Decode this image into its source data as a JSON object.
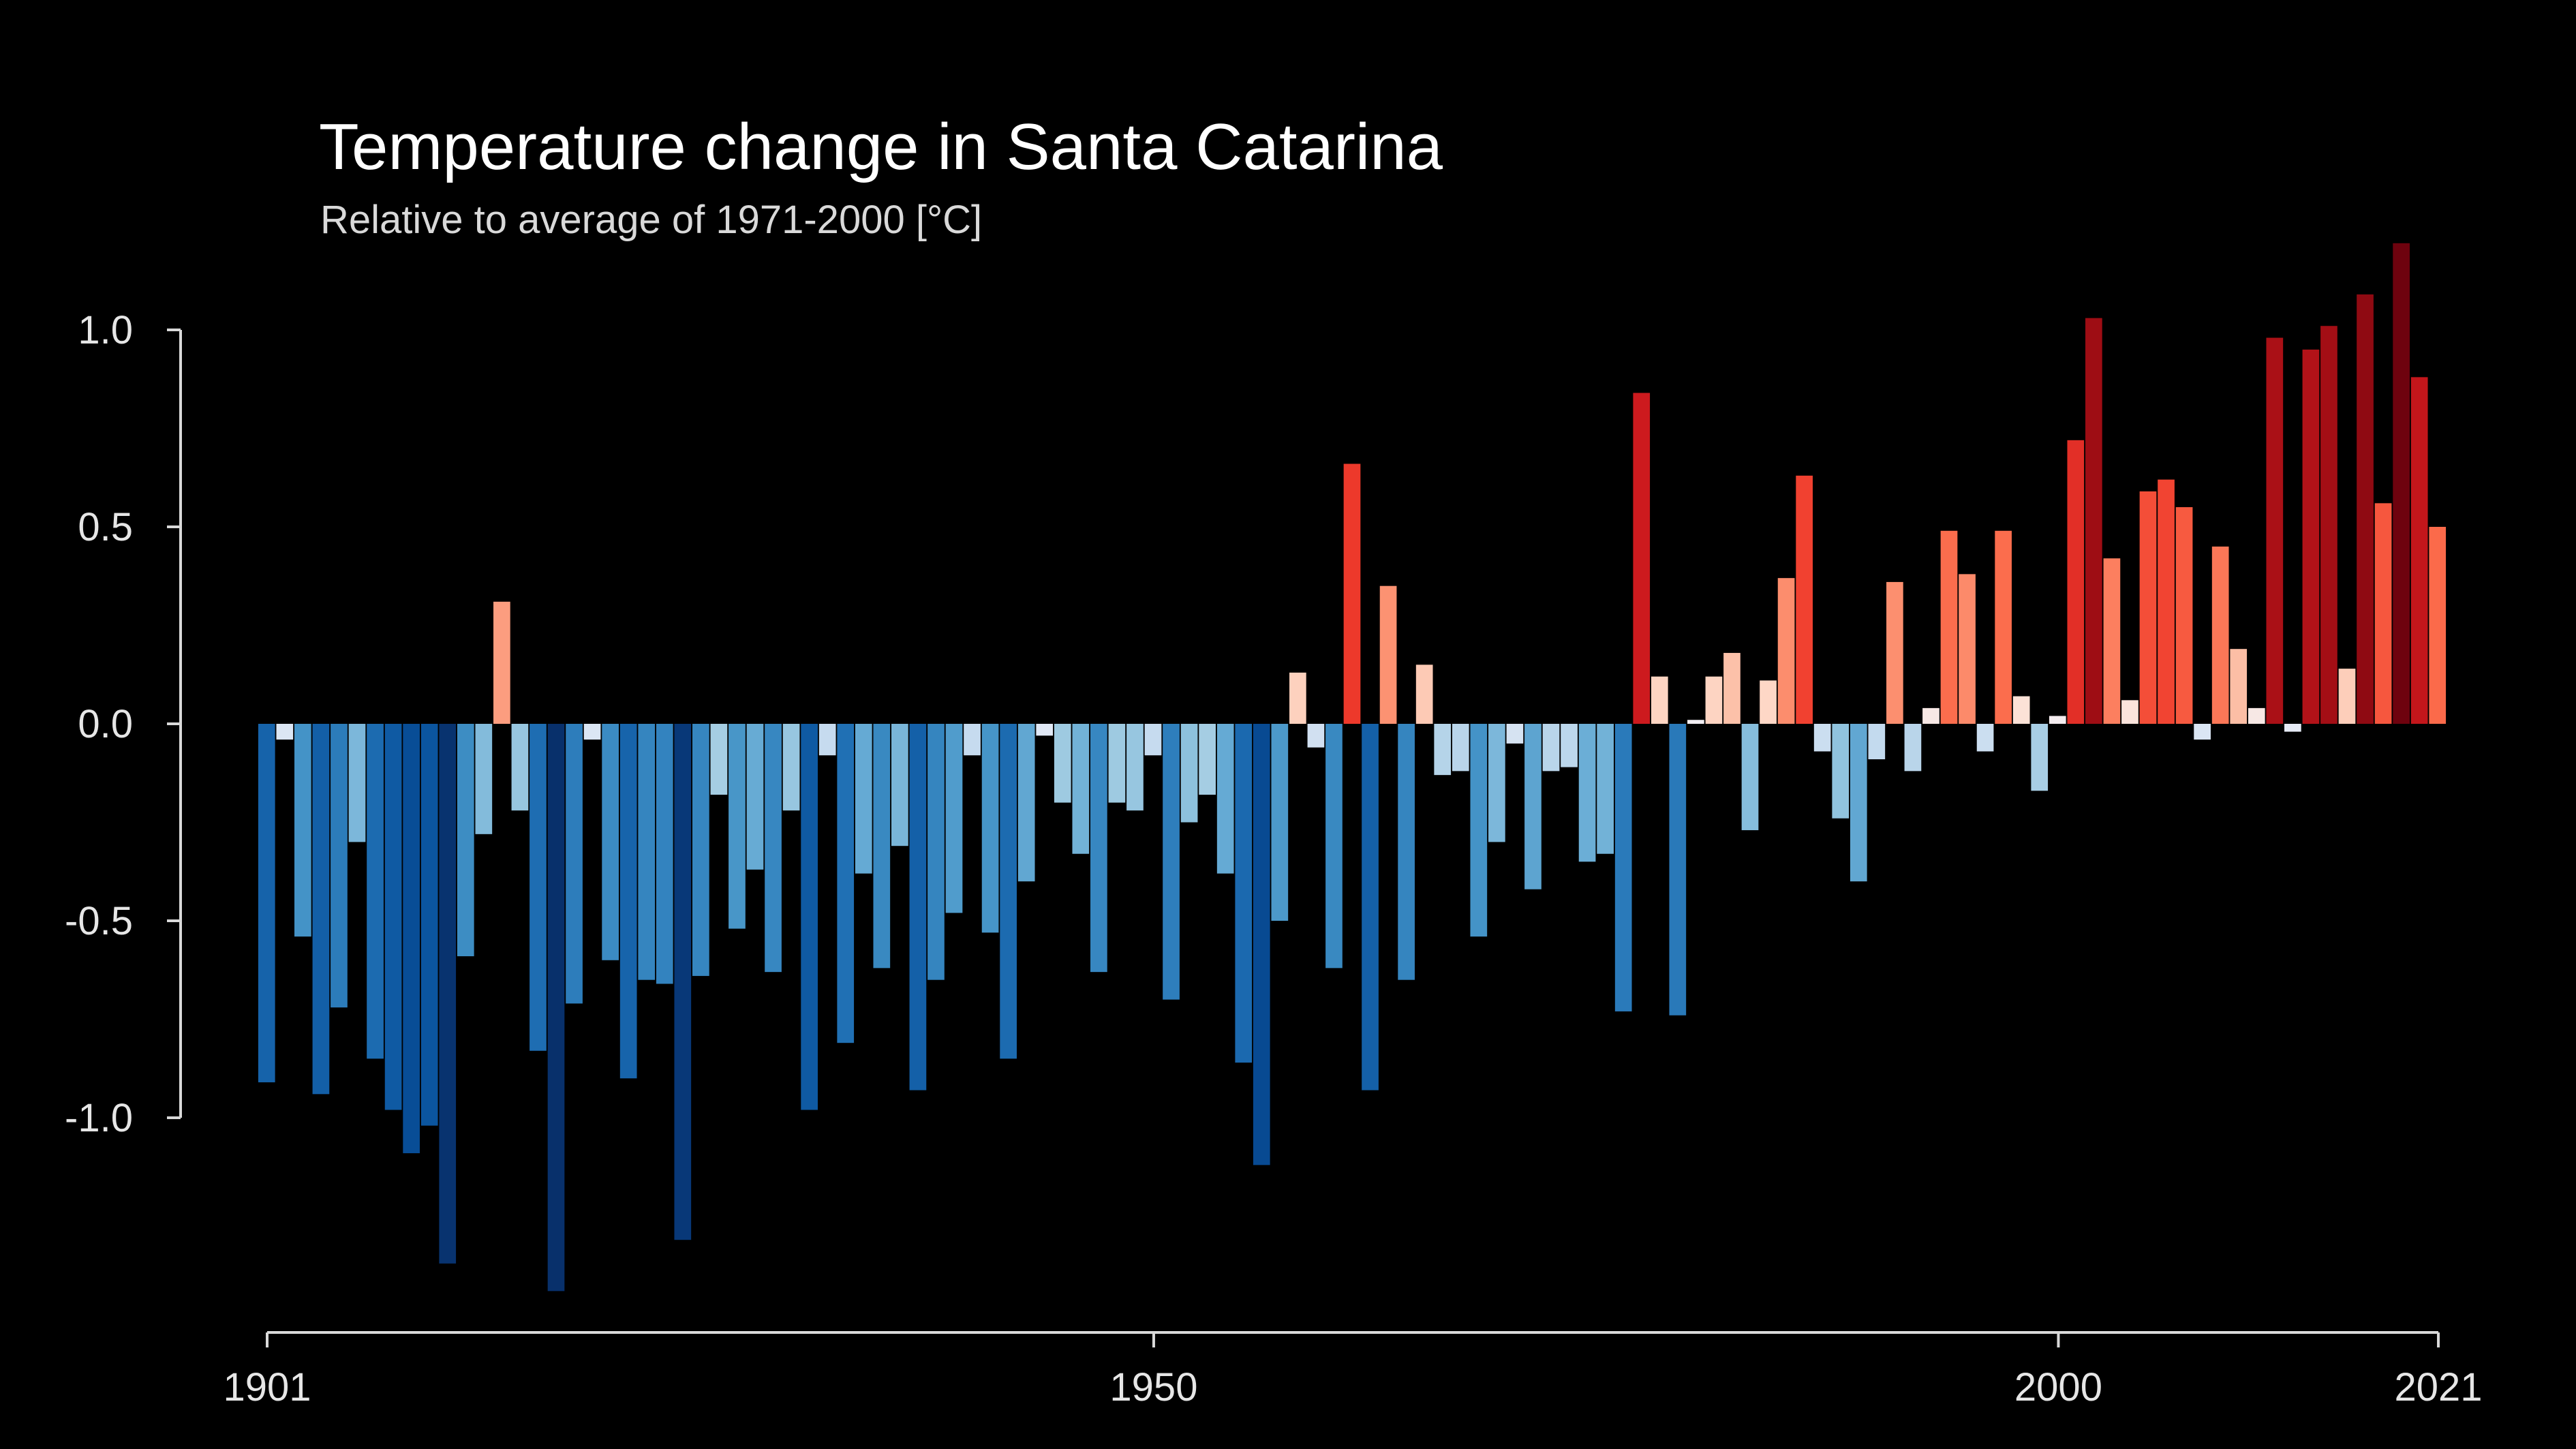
{
  "chart_data": {
    "type": "bar",
    "title": "Temperature change in Santa Catarina",
    "subtitle": "Relative to average of 1971-2000  [°C]",
    "xlabel": "",
    "ylabel": "",
    "x_start": 1901,
    "x_end": 2021,
    "xlim": [
      1901,
      2021
    ],
    "ylim": [
      -1.5,
      1.35
    ],
    "y_ticks": [
      1.0,
      0.5,
      0.0,
      -0.5,
      -1.0
    ],
    "y_tick_labels": [
      "1.0",
      "0.5",
      "0.0",
      "-0.5",
      "-1.0"
    ],
    "x_ticks": [
      1901,
      1950,
      2000,
      2021
    ],
    "x_tick_labels": [
      "1901",
      "1950",
      "2000",
      "2021"
    ],
    "grid": false,
    "legend": "none",
    "colormap": "blue-white-red diverging",
    "colors": {
      "background": "#000000",
      "axis": "#d9d9d9",
      "text": "#ffffff"
    },
    "x": [
      1901,
      1902,
      1903,
      1904,
      1905,
      1906,
      1907,
      1908,
      1909,
      1910,
      1911,
      1912,
      1913,
      1914,
      1915,
      1916,
      1917,
      1918,
      1919,
      1920,
      1921,
      1922,
      1923,
      1924,
      1925,
      1926,
      1927,
      1928,
      1929,
      1930,
      1931,
      1932,
      1933,
      1934,
      1935,
      1936,
      1937,
      1938,
      1939,
      1940,
      1941,
      1942,
      1943,
      1944,
      1945,
      1946,
      1947,
      1948,
      1949,
      1950,
      1951,
      1952,
      1953,
      1954,
      1955,
      1956,
      1957,
      1958,
      1959,
      1960,
      1961,
      1962,
      1963,
      1964,
      1965,
      1966,
      1967,
      1968,
      1969,
      1970,
      1971,
      1972,
      1973,
      1974,
      1975,
      1976,
      1977,
      1978,
      1979,
      1980,
      1981,
      1982,
      1983,
      1984,
      1985,
      1986,
      1987,
      1988,
      1989,
      1990,
      1991,
      1992,
      1993,
      1994,
      1995,
      1996,
      1997,
      1998,
      1999,
      2000,
      2001,
      2002,
      2003,
      2004,
      2005,
      2006,
      2007,
      2008,
      2009,
      2010,
      2011,
      2012,
      2013,
      2014,
      2015,
      2016,
      2017,
      2018,
      2019,
      2020,
      2021
    ],
    "values": [
      -0.91,
      -0.04,
      -0.54,
      -0.94,
      -0.72,
      -0.3,
      -0.85,
      -0.98,
      -1.09,
      -1.02,
      -1.37,
      -0.59,
      -0.28,
      0.31,
      -0.22,
      -0.83,
      -1.44,
      -0.71,
      -0.04,
      -0.6,
      -0.9,
      -0.65,
      -0.66,
      -1.31,
      -0.64,
      -0.18,
      -0.52,
      -0.37,
      -0.63,
      -0.22,
      -0.98,
      -0.08,
      -0.81,
      -0.38,
      -0.62,
      -0.31,
      -0.93,
      -0.65,
      -0.48,
      -0.08,
      -0.53,
      -0.85,
      -0.4,
      -0.03,
      -0.2,
      -0.33,
      -0.63,
      -0.2,
      -0.22,
      -0.08,
      -0.7,
      -0.25,
      -0.18,
      -0.38,
      -0.86,
      -1.12,
      -0.5,
      0.13,
      -0.06,
      -0.62,
      0.66,
      -0.93,
      0.35,
      -0.65,
      0.15,
      -0.13,
      -0.12,
      -0.54,
      -0.3,
      -0.05,
      -0.42,
      -0.12,
      -0.11,
      -0.35,
      -0.33,
      -0.73,
      0.84,
      0.12,
      -0.74,
      0.01,
      0.12,
      0.18,
      -0.27,
      0.11,
      0.37,
      0.63,
      -0.07,
      -0.24,
      -0.4,
      -0.09,
      0.36,
      -0.12,
      0.04,
      0.49,
      0.38,
      -0.07,
      0.49,
      0.07,
      -0.17,
      0.02,
      0.72,
      1.03,
      0.42,
      0.06,
      0.59,
      0.62,
      0.55,
      -0.04,
      0.45,
      0.19,
      0.04,
      0.98,
      -0.02,
      0.95,
      1.01,
      0.14,
      1.09,
      0.56,
      1.22,
      0.88,
      0.5
    ]
  }
}
